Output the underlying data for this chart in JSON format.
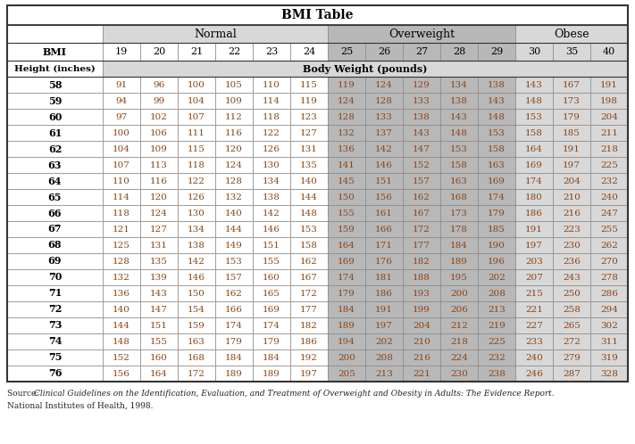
{
  "title": "BMI Table",
  "source_prefix": "Source: ",
  "source_italic": "Clinical Guidelines on the Identification, Evaluation, and Treatment of Overweight and Obesity in Adults: The Evidence Report.",
  "source_line2": "National Institutes of Health, 1998.",
  "col_headers": [
    "BMI",
    "19",
    "20",
    "21",
    "22",
    "23",
    "24",
    "25",
    "26",
    "27",
    "28",
    "29",
    "30",
    "35",
    "40"
  ],
  "heights": [
    58,
    59,
    60,
    61,
    62,
    63,
    64,
    65,
    66,
    67,
    68,
    69,
    70,
    71,
    72,
    73,
    74,
    75,
    76
  ],
  "data": [
    [
      91,
      96,
      100,
      105,
      110,
      115,
      119,
      124,
      129,
      134,
      138,
      143,
      167,
      191
    ],
    [
      94,
      99,
      104,
      109,
      114,
      119,
      124,
      128,
      133,
      138,
      143,
      148,
      173,
      198
    ],
    [
      97,
      102,
      107,
      112,
      118,
      123,
      128,
      133,
      138,
      143,
      148,
      153,
      179,
      204
    ],
    [
      100,
      106,
      111,
      116,
      122,
      127,
      132,
      137,
      143,
      148,
      153,
      158,
      185,
      211
    ],
    [
      104,
      109,
      115,
      120,
      126,
      131,
      136,
      142,
      147,
      153,
      158,
      164,
      191,
      218
    ],
    [
      107,
      113,
      118,
      124,
      130,
      135,
      141,
      146,
      152,
      158,
      163,
      169,
      197,
      225
    ],
    [
      110,
      116,
      122,
      128,
      134,
      140,
      145,
      151,
      157,
      163,
      169,
      174,
      204,
      232
    ],
    [
      114,
      120,
      126,
      132,
      138,
      144,
      150,
      156,
      162,
      168,
      174,
      180,
      210,
      240
    ],
    [
      118,
      124,
      130,
      140,
      142,
      148,
      155,
      161,
      167,
      173,
      179,
      186,
      216,
      247
    ],
    [
      121,
      127,
      134,
      144,
      146,
      153,
      159,
      166,
      172,
      178,
      185,
      191,
      223,
      255
    ],
    [
      125,
      131,
      138,
      149,
      151,
      158,
      164,
      171,
      177,
      184,
      190,
      197,
      230,
      262
    ],
    [
      128,
      135,
      142,
      153,
      155,
      162,
      169,
      176,
      182,
      189,
      196,
      203,
      236,
      270
    ],
    [
      132,
      139,
      146,
      157,
      160,
      167,
      174,
      181,
      188,
      195,
      202,
      207,
      243,
      278
    ],
    [
      136,
      143,
      150,
      162,
      165,
      172,
      179,
      186,
      193,
      200,
      208,
      215,
      250,
      286
    ],
    [
      140,
      147,
      154,
      166,
      169,
      177,
      184,
      191,
      199,
      206,
      213,
      221,
      258,
      294
    ],
    [
      144,
      151,
      159,
      174,
      174,
      182,
      189,
      197,
      204,
      212,
      219,
      227,
      265,
      302
    ],
    [
      148,
      155,
      163,
      179,
      179,
      186,
      194,
      202,
      210,
      218,
      225,
      233,
      272,
      311
    ],
    [
      152,
      160,
      168,
      184,
      184,
      192,
      200,
      208,
      216,
      224,
      232,
      240,
      279,
      319
    ],
    [
      156,
      164,
      172,
      189,
      189,
      197,
      205,
      213,
      221,
      230,
      238,
      246,
      287,
      328
    ]
  ],
  "WHITE": "#ffffff",
  "LIGHT_GRAY": "#d8d8d8",
  "MED_GRAY": "#b8b8b8",
  "DARK_GRAY": "#c0c0c0",
  "OW_BG": "#c0c0c0",
  "NORM_ROW": "#ffffff",
  "OW_ROW": "#d0d0d0",
  "OB_ROW": "#e8e8e8",
  "BROWN": "#8B4513",
  "BLACK": "#000000",
  "border_dark": "#333333",
  "border_light": "#888888"
}
